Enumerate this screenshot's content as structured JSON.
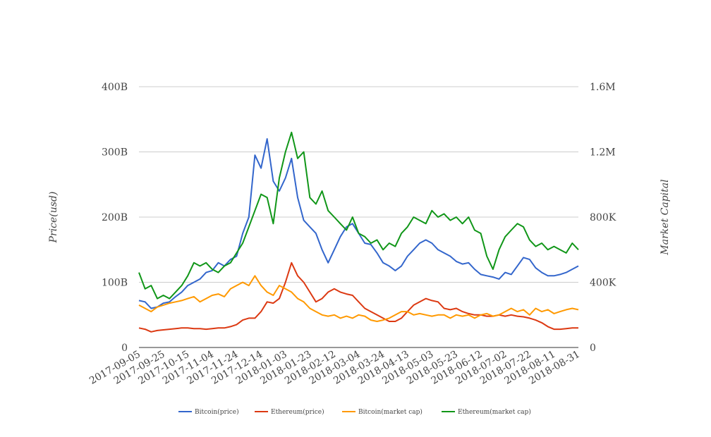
{
  "chart_data": {
    "type": "line",
    "start_date": "2017-09-05",
    "step_days": 5,
    "x_tick_labels": [
      "2017-09-05",
      "2017-09-25",
      "2017-10-15",
      "2017-11-04",
      "2017-11-24",
      "2017-12-14",
      "2018-01-03",
      "2018-01-23",
      "2018-02-12",
      "2018-03-04",
      "2018-03-24",
      "2018-04-13",
      "2018-05-03",
      "2018-05-23",
      "2018-06-12",
      "2018-07-02",
      "2018-07-22",
      "2018-08-11",
      "2018-08-31"
    ],
    "left_axis": {
      "label": "Price(usd)",
      "range": [
        0,
        400
      ],
      "ticks": [
        0,
        100,
        200,
        300,
        400
      ],
      "tick_labels": [
        "0",
        "100B",
        "200B",
        "300B",
        "400B"
      ]
    },
    "right_axis": {
      "label": "Market Capital",
      "range": [
        0,
        1600
      ],
      "ticks": [
        0,
        400,
        800,
        1200,
        1600
      ],
      "tick_labels": [
        "0",
        "400K",
        "800K",
        "1.2M",
        "1.6M"
      ]
    },
    "grid": true,
    "legend_position": "bottom",
    "series": [
      {
        "name": "Bitcoin(price)",
        "axis": "left",
        "color": "#3366cc",
        "values": [
          72,
          70,
          60,
          62,
          68,
          70,
          78,
          85,
          95,
          100,
          105,
          115,
          118,
          130,
          125,
          135,
          140,
          175,
          200,
          295,
          275,
          320,
          255,
          240,
          260,
          290,
          230,
          195,
          185,
          175,
          150,
          130,
          150,
          170,
          185,
          190,
          175,
          160,
          158,
          145,
          130,
          125,
          118,
          125,
          140,
          150,
          160,
          165,
          160,
          150,
          145,
          140,
          132,
          128,
          130,
          120,
          112,
          110,
          108,
          105,
          115,
          112,
          125,
          138,
          135,
          122,
          115,
          110,
          110,
          112,
          115,
          120,
          125
        ]
      },
      {
        "name": "Ethereum(price)",
        "axis": "left",
        "color": "#dc3912",
        "values": [
          30,
          28,
          24,
          26,
          27,
          28,
          29,
          30,
          30,
          29,
          29,
          28,
          29,
          30,
          30,
          32,
          35,
          42,
          45,
          45,
          55,
          70,
          68,
          75,
          100,
          130,
          110,
          100,
          85,
          70,
          75,
          85,
          90,
          85,
          82,
          80,
          70,
          60,
          55,
          50,
          45,
          40,
          40,
          45,
          55,
          65,
          70,
          75,
          72,
          70,
          60,
          58,
          60,
          55,
          52,
          50,
          50,
          48,
          48,
          50,
          48,
          50,
          48,
          47,
          45,
          42,
          38,
          32,
          28,
          28,
          29,
          30,
          30
        ]
      },
      {
        "name": "Bitcoin(market cap)",
        "axis": "right",
        "color": "#ff9900",
        "values": [
          260,
          240,
          220,
          248,
          260,
          272,
          280,
          288,
          300,
          312,
          280,
          300,
          320,
          328,
          312,
          360,
          380,
          400,
          380,
          440,
          380,
          340,
          320,
          380,
          360,
          340,
          300,
          280,
          240,
          220,
          200,
          192,
          200,
          180,
          192,
          180,
          200,
          192,
          168,
          160,
          168,
          180,
          200,
          220,
          220,
          200,
          208,
          200,
          192,
          200,
          200,
          180,
          200,
          192,
          200,
          180,
          200,
          208,
          192,
          200,
          220,
          240,
          220,
          232,
          200,
          240,
          220,
          232,
          208,
          220,
          232,
          240,
          232
        ]
      },
      {
        "name": "Ethereum(market cap)",
        "axis": "right",
        "color": "#109618",
        "values": [
          460,
          360,
          380,
          300,
          320,
          300,
          340,
          380,
          440,
          520,
          500,
          520,
          480,
          460,
          500,
          520,
          580,
          640,
          740,
          840,
          940,
          920,
          760,
          1040,
          1200,
          1320,
          1160,
          1200,
          920,
          880,
          960,
          840,
          800,
          760,
          720,
          800,
          700,
          680,
          640,
          660,
          600,
          640,
          620,
          700,
          740,
          800,
          780,
          760,
          840,
          800,
          820,
          780,
          800,
          760,
          800,
          720,
          700,
          560,
          480,
          600,
          680,
          720,
          760,
          740,
          660,
          620,
          640,
          600,
          620,
          600,
          580,
          640,
          600
        ]
      }
    ]
  }
}
